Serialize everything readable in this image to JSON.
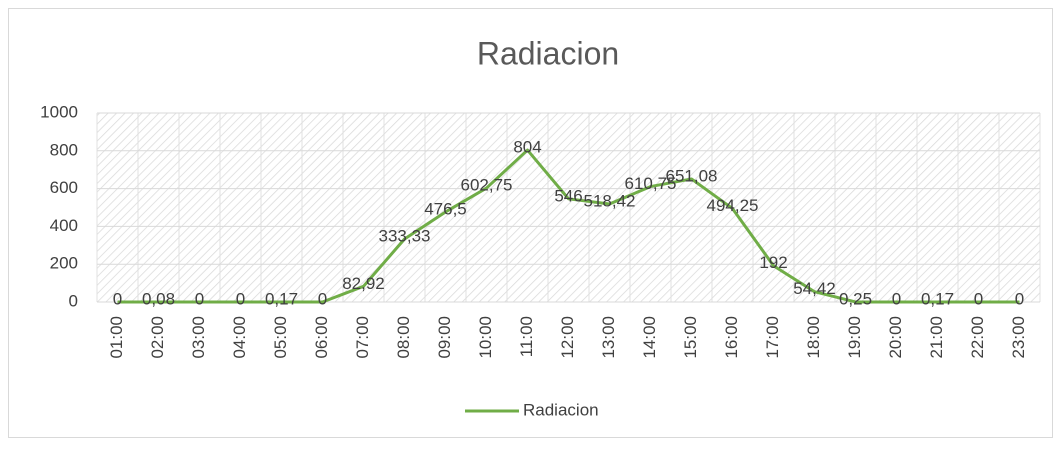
{
  "chart_data": {
    "type": "line",
    "title": "Radiacion",
    "categories": [
      "01:00",
      "02:00",
      "03:00",
      "04:00",
      "05:00",
      "06:00",
      "07:00",
      "08:00",
      "09:00",
      "10:00",
      "11:00",
      "12:00",
      "13:00",
      "14:00",
      "15:00",
      "16:00",
      "17:00",
      "18:00",
      "19:00",
      "20:00",
      "21:00",
      "22:00",
      "23:00"
    ],
    "series": [
      {
        "name": "Radiacion",
        "color": "#70ad47",
        "values": [
          0,
          0.08,
          0,
          0,
          0.17,
          0,
          82.92,
          333.33,
          476.5,
          602.75,
          804,
          546,
          518.42,
          610.75,
          651.08,
          494.25,
          192,
          54.42,
          0.25,
          0,
          0.17,
          0,
          0
        ],
        "value_labels": [
          "0",
          "0,08",
          "0",
          "0",
          "0,17",
          "0",
          "82,92",
          "333,33",
          "476,5",
          "602,75",
          "804",
          "546",
          "518,42",
          "610,75",
          "651,08",
          "494,25",
          "192",
          "54,42",
          "0,25",
          "0",
          "0,17",
          "0",
          "0"
        ]
      }
    ],
    "ylim": [
      0,
      1000
    ],
    "yticks": [
      0,
      200,
      400,
      600,
      800,
      1000
    ],
    "grid": true,
    "legend": "bottom"
  }
}
